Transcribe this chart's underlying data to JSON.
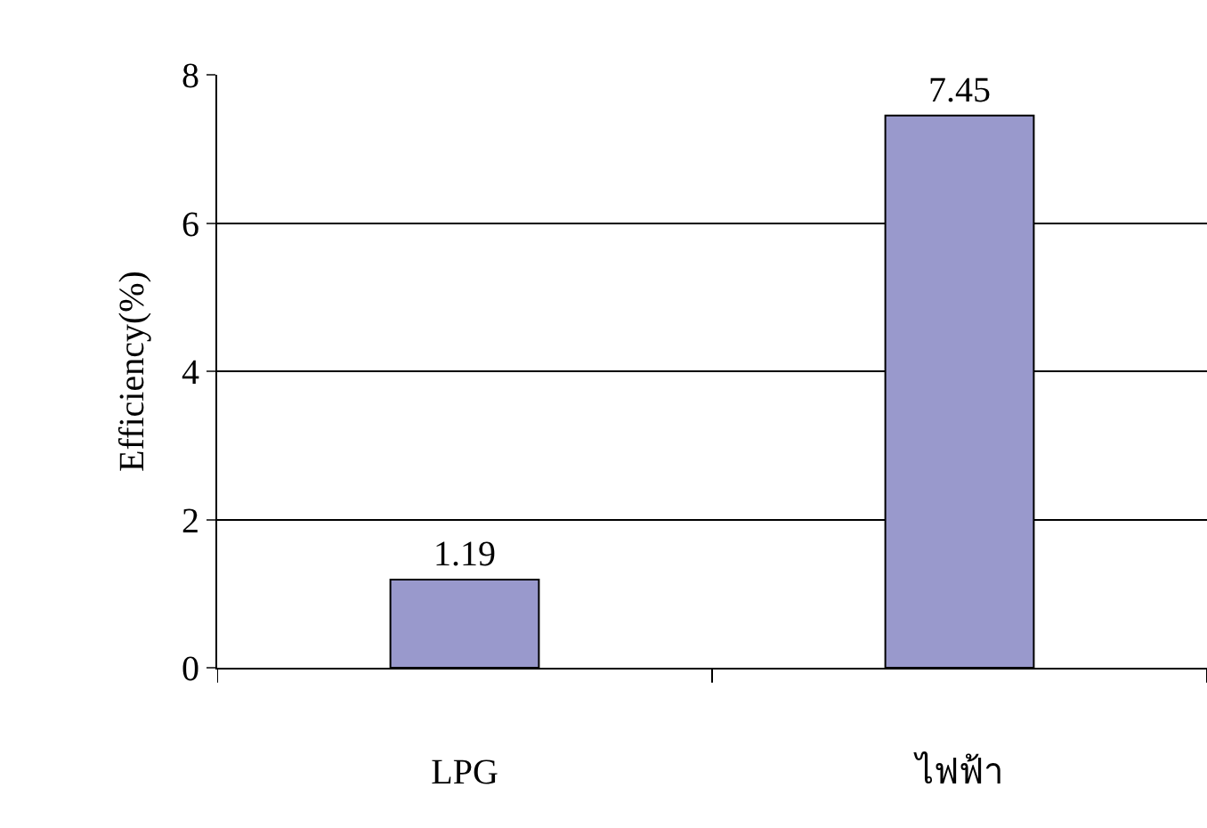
{
  "chart_data": {
    "type": "bar",
    "ylabel": "Efficiency(%)",
    "categories": [
      "LPG",
      "ไฟฟ้า"
    ],
    "values": [
      1.19,
      7.45
    ],
    "color": "#9999cc",
    "ylim": [
      0,
      8
    ],
    "yticks": [
      0,
      2,
      4,
      6,
      8
    ],
    "grid": "y",
    "data_labels": true,
    "legend": false
  }
}
